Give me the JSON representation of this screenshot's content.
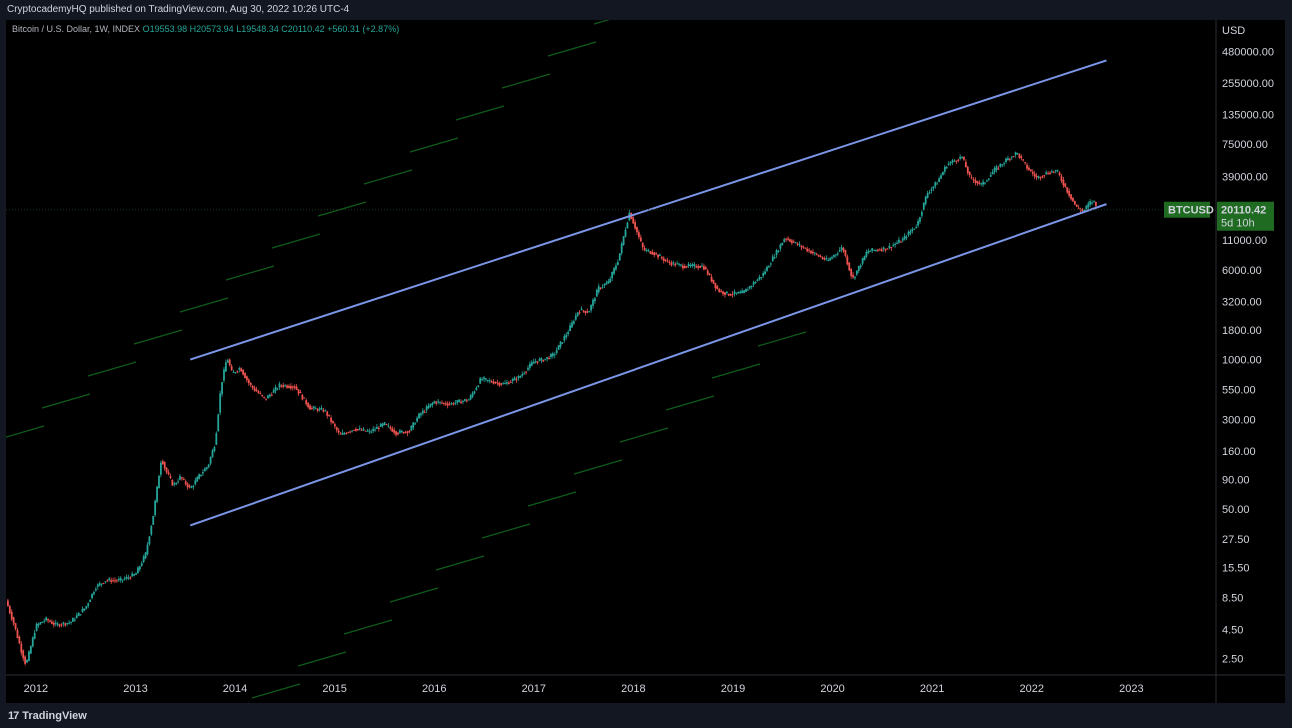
{
  "header": {
    "publisher_line": "CryptocademyHQ published on TradingView.com, Aug 30, 2022 10:26 UTC-4"
  },
  "legend": {
    "symbol_desc": "Bitcoin / U.S. Dollar, 1W, INDEX",
    "open": "O19553.98",
    "high": "H20573.94",
    "low": "L19548.34",
    "close": "C20110.42",
    "change": "+560.31 (+2.87%)"
  },
  "footer": {
    "brand": "TradingView",
    "logo_glyph": "17"
  },
  "colors": {
    "background": "#000000",
    "panel": "#131722",
    "channel_line": "#7b96e6",
    "up_candle": "#26a69a",
    "down_candle": "#ef5350",
    "price_label_bg": "#1e6b21",
    "ghost_green": "#0f5d1a",
    "ghost_red": "#4a1212"
  },
  "chart_data": {
    "type": "line",
    "title": "Bitcoin / U.S. Dollar, 1W, INDEX",
    "y_scale": "log",
    "currency": "USD",
    "ylim": [
      1.8,
      900000
    ],
    "xlim": [
      2011.7,
      2023.85
    ],
    "y_ticks": [
      2.5,
      4.5,
      8.5,
      15.5,
      27.5,
      50,
      90,
      160,
      300,
      550,
      1000,
      1800,
      3200,
      6000,
      11000,
      39000,
      75000,
      135000,
      255000,
      480000
    ],
    "y_tick_labels": [
      "2.50",
      "4.50",
      "8.50",
      "15.50",
      "27.50",
      "50.00",
      "90.00",
      "160.00",
      "300.00",
      "550.00",
      "1000.00",
      "1800.00",
      "3200.00",
      "6000.00",
      "11000.00",
      "39000.00",
      "75000.00",
      "135000.00",
      "255000.00",
      "480000.00"
    ],
    "x_ticks": [
      2012,
      2013,
      2014,
      2015,
      2016,
      2017,
      2018,
      2019,
      2020,
      2021,
      2022,
      2023
    ],
    "x_tick_labels": [
      "2012",
      "2013",
      "2014",
      "2015",
      "2016",
      "2017",
      "2018",
      "2019",
      "2020",
      "2021",
      "2022",
      "2023"
    ],
    "grid": false,
    "legend": "none",
    "last_price": {
      "value": 20110.42,
      "symbol": "BTCUSD",
      "label": "20110.42",
      "countdown": "5d 10h"
    },
    "series": [
      {
        "name": "BTCUSD",
        "points": [
          [
            2011.7,
            8.0
          ],
          [
            2011.78,
            5.0
          ],
          [
            2011.85,
            3.0
          ],
          [
            2011.9,
            2.2
          ],
          [
            2011.95,
            3.2
          ],
          [
            2012.0,
            4.8
          ],
          [
            2012.1,
            5.5
          ],
          [
            2012.2,
            4.9
          ],
          [
            2012.35,
            5.2
          ],
          [
            2012.5,
            7.0
          ],
          [
            2012.6,
            10.5
          ],
          [
            2012.7,
            12.0
          ],
          [
            2012.85,
            12.0
          ],
          [
            2013.0,
            13.5
          ],
          [
            2013.1,
            20.0
          ],
          [
            2013.18,
            45.0
          ],
          [
            2013.26,
            140.0
          ],
          [
            2013.3,
            110.0
          ],
          [
            2013.38,
            80.0
          ],
          [
            2013.45,
            95.0
          ],
          [
            2013.55,
            75.0
          ],
          [
            2013.65,
            100.0
          ],
          [
            2013.73,
            120.0
          ],
          [
            2013.8,
            190.0
          ],
          [
            2013.86,
            600.0
          ],
          [
            2013.92,
            1050.0
          ],
          [
            2013.97,
            750.0
          ],
          [
            2014.05,
            850.0
          ],
          [
            2014.15,
            600.0
          ],
          [
            2014.3,
            450.0
          ],
          [
            2014.45,
            600.0
          ],
          [
            2014.6,
            580.0
          ],
          [
            2014.75,
            380.0
          ],
          [
            2014.9,
            360.0
          ],
          [
            2015.05,
            220.0
          ],
          [
            2015.2,
            250.0
          ],
          [
            2015.35,
            235.0
          ],
          [
            2015.5,
            275.0
          ],
          [
            2015.62,
            230.0
          ],
          [
            2015.75,
            240.0
          ],
          [
            2015.85,
            330.0
          ],
          [
            2016.0,
            430.0
          ],
          [
            2016.15,
            410.0
          ],
          [
            2016.35,
            450.0
          ],
          [
            2016.47,
            680.0
          ],
          [
            2016.55,
            650.0
          ],
          [
            2016.7,
            610.0
          ],
          [
            2016.85,
            700.0
          ],
          [
            2017.0,
            960.0
          ],
          [
            2017.1,
            1000.0
          ],
          [
            2017.2,
            1100.0
          ],
          [
            2017.35,
            1800.0
          ],
          [
            2017.45,
            2700.0
          ],
          [
            2017.55,
            2600.0
          ],
          [
            2017.65,
            4200.0
          ],
          [
            2017.75,
            4700.0
          ],
          [
            2017.85,
            7500.0
          ],
          [
            2017.93,
            15000.0
          ],
          [
            2017.96,
            19000.0
          ],
          [
            2018.02,
            14000.0
          ],
          [
            2018.1,
            9000.0
          ],
          [
            2018.2,
            8500.0
          ],
          [
            2018.35,
            7000.0
          ],
          [
            2018.5,
            6500.0
          ],
          [
            2018.7,
            6500.0
          ],
          [
            2018.85,
            4000.0
          ],
          [
            2018.95,
            3700.0
          ],
          [
            2019.1,
            3800.0
          ],
          [
            2019.3,
            5500.0
          ],
          [
            2019.45,
            9000.0
          ],
          [
            2019.52,
            11500.0
          ],
          [
            2019.65,
            10000.0
          ],
          [
            2019.8,
            8500.0
          ],
          [
            2019.95,
            7200.0
          ],
          [
            2020.1,
            9500.0
          ],
          [
            2020.2,
            5000.0
          ],
          [
            2020.35,
            8800.0
          ],
          [
            2020.55,
            9300.0
          ],
          [
            2020.7,
            11000.0
          ],
          [
            2020.85,
            15000.0
          ],
          [
            2020.95,
            28000.0
          ],
          [
            2021.05,
            35000.0
          ],
          [
            2021.15,
            50000.0
          ],
          [
            2021.3,
            58000.0
          ],
          [
            2021.38,
            38000.0
          ],
          [
            2021.5,
            33000.0
          ],
          [
            2021.62,
            44000.0
          ],
          [
            2021.75,
            55000.0
          ],
          [
            2021.85,
            63000.0
          ],
          [
            2021.95,
            47000.0
          ],
          [
            2022.05,
            38000.0
          ],
          [
            2022.15,
            42000.0
          ],
          [
            2022.25,
            44000.0
          ],
          [
            2022.35,
            30000.0
          ],
          [
            2022.45,
            21000.0
          ],
          [
            2022.52,
            19500.0
          ],
          [
            2022.58,
            23000.0
          ],
          [
            2022.62,
            24000.0
          ],
          [
            2022.66,
            20110.42
          ]
        ]
      }
    ],
    "channel": [
      {
        "name": "upper",
        "from": [
          2013.55,
          1000
        ],
        "to": [
          2022.75,
          400000
        ]
      },
      {
        "name": "lower",
        "from": [
          2013.55,
          36
        ],
        "to": [
          2022.75,
          22500
        ]
      }
    ]
  }
}
